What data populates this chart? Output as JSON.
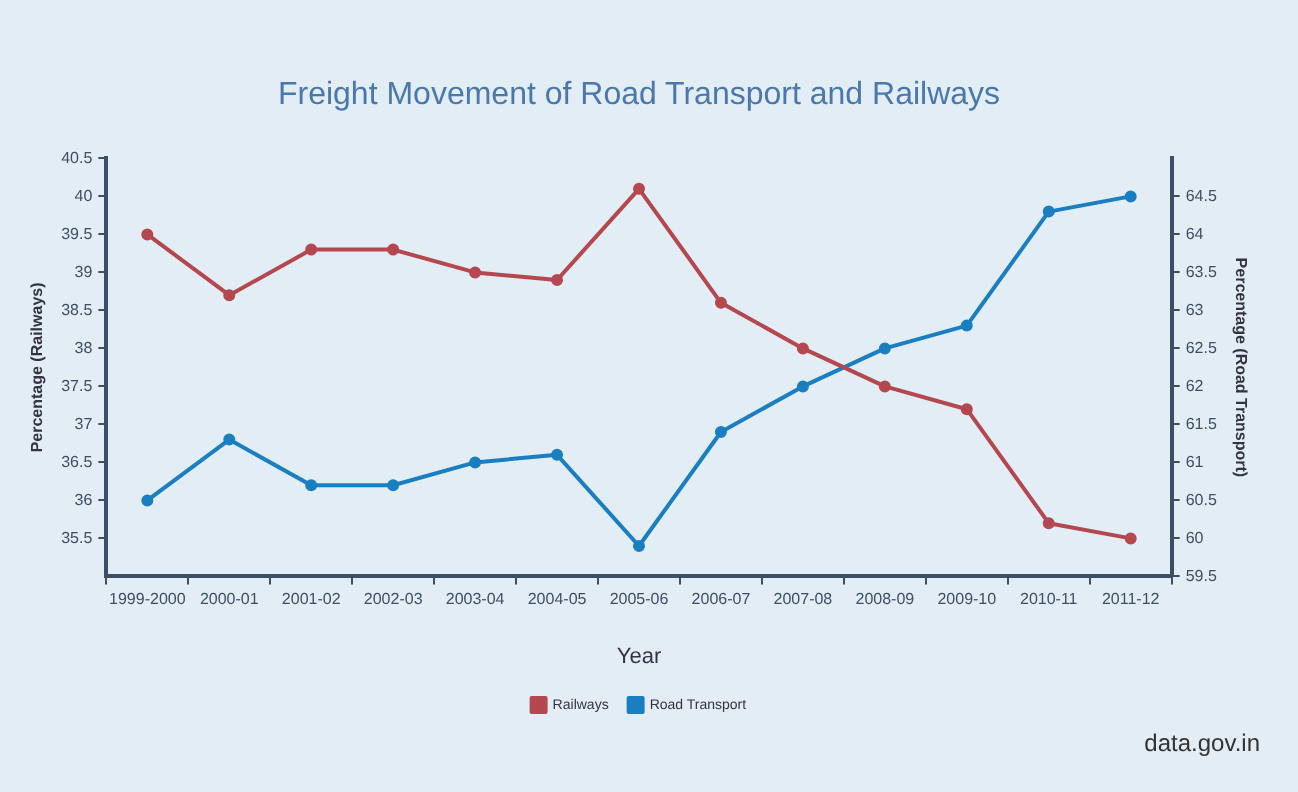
{
  "chart_data": {
    "type": "line",
    "title": "Freight Movement of Road Transport and Railways",
    "xlabel": "Year",
    "ylabel": "Percentage (Railways)",
    "y2label": "Percentage (Road Transport)",
    "categories": [
      "1999-2000",
      "2000-01",
      "2001-02",
      "2002-03",
      "2003-04",
      "2004-05",
      "2005-06",
      "2006-07",
      "2007-08",
      "2008-09",
      "2009-10",
      "2010-11",
      "2011-12"
    ],
    "series": [
      {
        "name": "Railways",
        "color": "#b5474f",
        "values": [
          39.5,
          38.7,
          39.3,
          39.3,
          39.0,
          38.9,
          40.1,
          38.6,
          38.0,
          37.5,
          37.2,
          35.7,
          35.5
        ]
      },
      {
        "name": "Road Transport",
        "color": "#1a7fc1",
        "axis": "y2",
        "values": [
          60.5,
          61.3,
          60.7,
          60.7,
          61.0,
          61.1,
          59.9,
          61.4,
          62.0,
          62.5,
          62.8,
          64.3,
          64.5
        ]
      }
    ],
    "ylim": [
      35,
      40.5
    ],
    "yticks": [
      35.5,
      36,
      36.5,
      37,
      37.5,
      38,
      38.5,
      39,
      39.5,
      40,
      40.5
    ],
    "y2lim": [
      59.5,
      65
    ],
    "y2ticks": [
      59.5,
      60,
      60.5,
      61,
      61.5,
      62,
      62.5,
      63,
      63.5,
      64,
      64.5
    ],
    "grid": false,
    "legend": "bottom",
    "marker": "circle",
    "line_style": "solid",
    "annotations": [
      "data.gov.in"
    ]
  }
}
